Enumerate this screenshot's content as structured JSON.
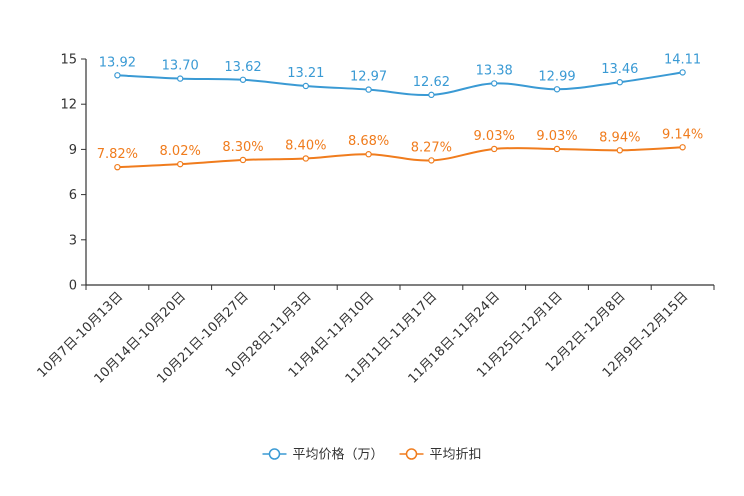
{
  "chart_data": {
    "type": "line",
    "title": "",
    "xlabel": "",
    "ylabel": "",
    "ylim": [
      0,
      15
    ],
    "yticks": [
      0,
      3,
      6,
      9,
      12,
      15
    ],
    "categories": [
      "10月7日-10月13日",
      "10月14日-10月20日",
      "10月21日-10月27日",
      "10月28日-11月3日",
      "11月4日-11月10日",
      "11月11日-11月17日",
      "11月18日-11月24日",
      "11月25日-12月1日",
      "12月2日-12月8日",
      "12月9日-12月15日"
    ],
    "series": [
      {
        "name": "平均价格（万）",
        "color": "#3a9ad4",
        "values": [
          13.92,
          13.7,
          13.62,
          13.21,
          12.97,
          12.62,
          13.38,
          12.99,
          13.46,
          14.11
        ],
        "labels": [
          "13.92",
          "13.70",
          "13.62",
          "13.21",
          "12.97",
          "12.62",
          "13.38",
          "12.99",
          "13.46",
          "14.11"
        ]
      },
      {
        "name": "平均折扣",
        "color": "#f07c1d",
        "values": [
          7.82,
          8.02,
          8.3,
          8.4,
          8.68,
          8.27,
          9.03,
          9.03,
          8.94,
          9.14
        ],
        "labels": [
          "7.82%",
          "8.02%",
          "8.30%",
          "8.40%",
          "8.68%",
          "8.27%",
          "9.03%",
          "9.03%",
          "8.94%",
          "9.14%"
        ]
      }
    ],
    "legend_position": "bottom-center",
    "grid": false
  }
}
